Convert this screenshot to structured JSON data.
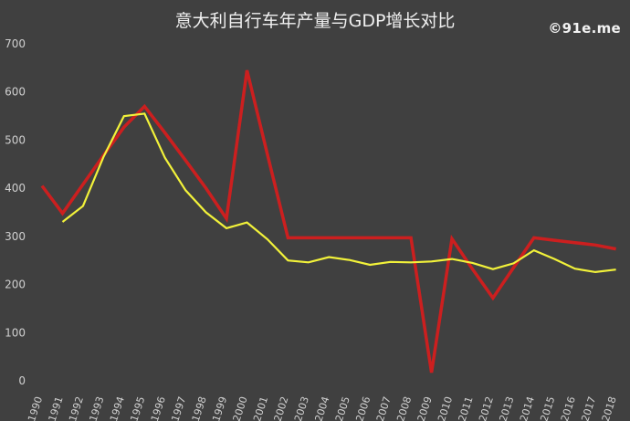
{
  "header": {
    "title": "意大利自行车年产量与GDP增长对比",
    "watermark": "©91e.me"
  },
  "colors": {
    "background": "#404040",
    "series_red": "#cc1f1f",
    "series_yellow": "#f2f23a",
    "text": "#cfcfcf"
  },
  "chart_data": {
    "type": "line",
    "title": "意大利自行车年产量与GDP增长对比",
    "xlabel": "",
    "ylabel": "",
    "ylim": [
      0,
      700
    ],
    "yticks": [
      0,
      100,
      200,
      300,
      400,
      500,
      600,
      700
    ],
    "grid": false,
    "legend": "none",
    "categories": [
      "1990",
      "1991",
      "1992",
      "1993",
      "1994",
      "1995",
      "1996",
      "1997",
      "1998",
      "1999",
      "2000",
      "2001",
      "2002",
      "2003",
      "2004",
      "2005",
      "2006",
      "2007",
      "2008",
      "2009",
      "2010",
      "2011",
      "2012",
      "2013",
      "2014",
      "2015",
      "2016",
      "2017",
      "2018"
    ],
    "series": [
      {
        "color": "#cc1f1f",
        "values": [
          405,
          348,
          408,
          468,
          527,
          570,
          515,
          458,
          400,
          337,
          645,
          470,
          297,
          297,
          297,
          297,
          297,
          297,
          297,
          17,
          295,
          232,
          172,
          235,
          297,
          292,
          287,
          282,
          274
        ]
      },
      {
        "color": "#f2f23a",
        "values": [
          null,
          330,
          363,
          465,
          550,
          555,
          463,
          396,
          350,
          317,
          329,
          294,
          250,
          246,
          257,
          251,
          241,
          247,
          246,
          248,
          253,
          245,
          232,
          244,
          271,
          253,
          233,
          226,
          231
        ]
      }
    ]
  }
}
